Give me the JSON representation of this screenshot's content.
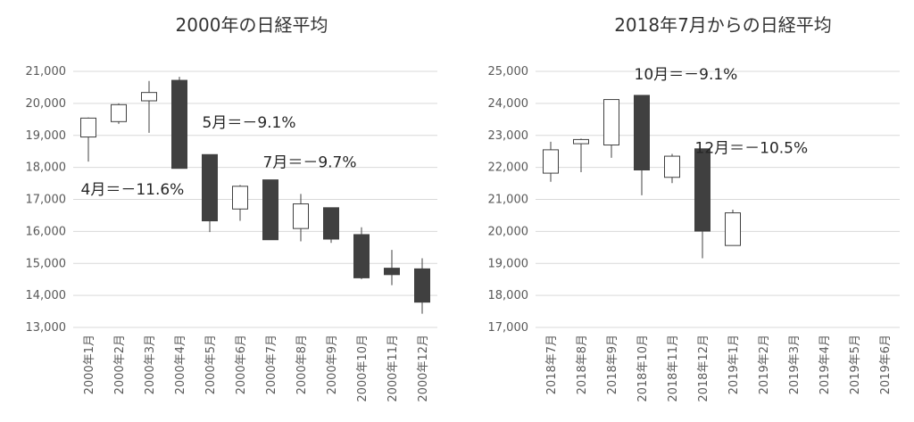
{
  "chart_data": [
    {
      "type": "candlestick",
      "title": "2000年の日経平均",
      "ylim": [
        13000,
        21000
      ],
      "yticks": [
        "13,000",
        "14,000",
        "15,000",
        "16,000",
        "17,000",
        "18,000",
        "19,000",
        "20,000",
        "21,000"
      ],
      "categories": [
        "2000年1月",
        "2000年2月",
        "2000年3月",
        "2000年4月",
        "2000年5月",
        "2000年6月",
        "2000年7月",
        "2000年8月",
        "2000年9月",
        "2000年10月",
        "2000年11月",
        "2000年12月"
      ],
      "ohlc": [
        [
          18950,
          19560,
          18180,
          19540
        ],
        [
          19430,
          20000,
          19360,
          19960
        ],
        [
          20080,
          20700,
          19080,
          20340
        ],
        [
          20720,
          20830,
          17970,
          17970
        ],
        [
          18400,
          18400,
          15980,
          16330
        ],
        [
          16700,
          17450,
          16330,
          17410
        ],
        [
          17610,
          17610,
          15740,
          15740
        ],
        [
          16090,
          17170,
          15690,
          16860
        ],
        [
          16740,
          16740,
          15640,
          15760
        ],
        [
          15900,
          16130,
          14510,
          14550
        ],
        [
          14850,
          15420,
          14320,
          14650
        ],
        [
          14830,
          15160,
          13430,
          13790
        ]
      ],
      "annotations": [
        {
          "text": "4月＝－11.6%",
          "x": "2000年1月",
          "y": 17150
        },
        {
          "text": "5月＝－9.1%",
          "x": "2000年5月",
          "y": 19250
        },
        {
          "text": "7月＝－9.7%",
          "x": "2000年7月",
          "y": 18000
        }
      ]
    },
    {
      "type": "candlestick",
      "title": "2018年7月からの日経平均",
      "ylim": [
        17000,
        25000
      ],
      "yticks": [
        "17,000",
        "18,000",
        "19,000",
        "20,000",
        "21,000",
        "22,000",
        "23,000",
        "24,000",
        "25,000"
      ],
      "categories": [
        "2018年7月",
        "2018年8月",
        "2018年9月",
        "2018年10月",
        "2018年11月",
        "2018年12月",
        "2019年1月",
        "2019年2月",
        "2019年3月",
        "2019年4月",
        "2019年5月",
        "2019年6月"
      ],
      "ohlc": [
        [
          21820,
          22800,
          21550,
          22550
        ],
        [
          22740,
          22900,
          21850,
          22870
        ],
        [
          22700,
          24120,
          22300,
          24120
        ],
        [
          24250,
          24250,
          21130,
          21920
        ],
        [
          21690,
          22420,
          21510,
          22350
        ],
        [
          22580,
          22580,
          19160,
          20010
        ],
        [
          19560,
          20680,
          19560,
          20580
        ]
      ],
      "annotations": [
        {
          "text": "10月＝－9.1%",
          "x": "2018年10月",
          "y": 24750
        },
        {
          "text": "12月＝－10.5%",
          "x": "2018年12月",
          "y": 22450
        }
      ]
    }
  ]
}
